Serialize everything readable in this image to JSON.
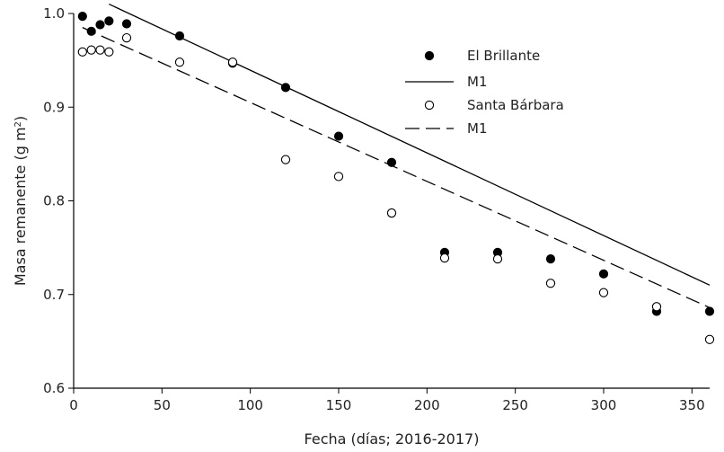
{
  "chart_data": {
    "type": "scatter",
    "title": "",
    "xlabel": "Fecha (días; 2016-2017)",
    "ylabel": "Masa remanente (g m",
    "ylabel_sup": "2",
    "ylabel_close": ")",
    "xlim": [
      0,
      360
    ],
    "ylim": [
      0.6,
      1.0
    ],
    "xticks": [
      0,
      50,
      100,
      150,
      200,
      250,
      300,
      350
    ],
    "yticks": [
      0.6,
      0.7,
      0.8,
      0.9,
      1.0
    ],
    "xtick_labels": [
      "0",
      "50",
      "100",
      "150",
      "200",
      "250",
      "300",
      "350"
    ],
    "ytick_labels": [
      "0.6",
      "0.7",
      "0.8",
      "0.9",
      "1.0"
    ],
    "grid": false,
    "legend_position": "top-right",
    "series": [
      {
        "name": "El Brillante",
        "kind": "points",
        "marker": "filled-circle",
        "color": "#000000",
        "x": [
          5,
          10,
          15,
          20,
          30,
          60,
          90,
          120,
          150,
          180,
          210,
          240,
          270,
          300,
          330,
          360
        ],
        "y": [
          0.997,
          0.981,
          0.988,
          0.992,
          0.989,
          0.976,
          0.947,
          0.921,
          0.869,
          0.841,
          0.745,
          0.745,
          0.738,
          0.722,
          0.682,
          0.682
        ]
      },
      {
        "name": "M1",
        "kind": "line",
        "style": "solid",
        "color": "#000000",
        "x": [
          20,
          360
        ],
        "y": [
          1.01,
          0.71
        ]
      },
      {
        "name": "Santa Bárbara",
        "kind": "points",
        "marker": "open-circle",
        "color": "#000000",
        "x": [
          5,
          10,
          15,
          20,
          30,
          60,
          90,
          120,
          150,
          180,
          210,
          240,
          270,
          300,
          330,
          360
        ],
        "y": [
          0.959,
          0.961,
          0.961,
          0.959,
          0.974,
          0.948,
          0.948,
          0.844,
          0.826,
          0.787,
          0.739,
          0.738,
          0.712,
          0.702,
          0.687,
          0.652
        ]
      },
      {
        "name": "M1",
        "kind": "line",
        "style": "dashed",
        "color": "#000000",
        "x": [
          5,
          360
        ],
        "y": [
          0.985,
          0.686
        ]
      }
    ]
  }
}
